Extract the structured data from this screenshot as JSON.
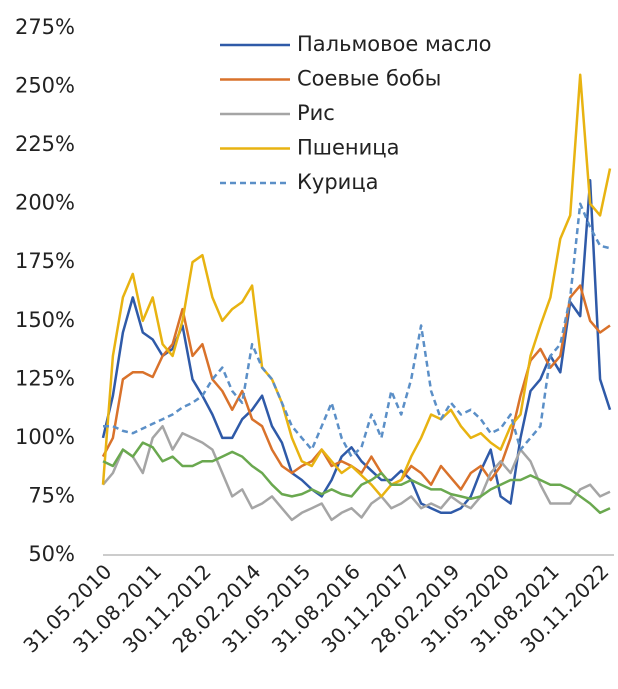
{
  "chart_data": {
    "type": "line",
    "categories": [
      "31.05.2010",
      null,
      null,
      null,
      null,
      "31.08.2011",
      null,
      null,
      null,
      null,
      "30.11.2012",
      null,
      null,
      null,
      null,
      "28.02.2014",
      null,
      null,
      null,
      null,
      "31.05.2015",
      null,
      null,
      null,
      null,
      "31.08.2016",
      null,
      null,
      null,
      null,
      "30.11.2017",
      null,
      null,
      null,
      null,
      "28.02.2019",
      null,
      null,
      null,
      null,
      "31.05.2020",
      null,
      null,
      null,
      null,
      "31.08.2021",
      null,
      null,
      null,
      null,
      "30.11.2022",
      null
    ],
    "series": [
      {
        "name": "Пальмовое масло",
        "color": "#2f5aa8",
        "values": [
          100,
          118,
          145,
          160,
          145,
          142,
          135,
          138,
          148,
          125,
          118,
          110,
          100,
          100,
          108,
          112,
          118,
          105,
          98,
          85,
          82,
          78,
          75,
          82,
          92,
          96,
          90,
          86,
          82,
          82,
          86,
          82,
          72,
          70,
          68,
          68,
          70,
          75,
          86,
          95,
          75,
          72,
          100,
          120,
          125,
          135,
          128,
          158,
          152,
          210,
          125,
          112
        ]
      },
      {
        "name": "Соевые бобы",
        "color": "#d9722b",
        "values": [
          92,
          100,
          125,
          128,
          128,
          126,
          135,
          140,
          155,
          135,
          140,
          125,
          120,
          112,
          120,
          108,
          105,
          95,
          88,
          85,
          88,
          90,
          95,
          88,
          90,
          88,
          85,
          92,
          85,
          80,
          82,
          88,
          85,
          80,
          88,
          83,
          78,
          85,
          88,
          82,
          88,
          100,
          118,
          133,
          138,
          130,
          135,
          160,
          165,
          150,
          145,
          148
        ]
      },
      {
        "name": "Рис",
        "color": "#a5a5a5",
        "values": [
          80,
          85,
          95,
          92,
          85,
          100,
          105,
          95,
          102,
          100,
          98,
          95,
          85,
          75,
          78,
          70,
          72,
          75,
          70,
          65,
          68,
          70,
          72,
          65,
          68,
          70,
          66,
          72,
          75,
          70,
          72,
          75,
          70,
          72,
          70,
          75,
          72,
          70,
          75,
          85,
          90,
          85,
          95,
          90,
          80,
          72,
          72,
          72,
          78,
          80,
          75,
          77
        ]
      },
      {
        "name": "Пшеница",
        "color": "#e8b311",
        "values": [
          80,
          135,
          160,
          170,
          150,
          160,
          140,
          135,
          150,
          175,
          178,
          160,
          150,
          155,
          158,
          165,
          130,
          125,
          115,
          100,
          90,
          88,
          95,
          90,
          85,
          88,
          84,
          80,
          75,
          80,
          82,
          92,
          100,
          110,
          108,
          112,
          105,
          100,
          102,
          98,
          95,
          105,
          110,
          135,
          148,
          160,
          185,
          195,
          255,
          200,
          195,
          215
        ]
      },
      {
        "name": "Курица",
        "color": "#5b8fc7",
        "dashed": true,
        "values": [
          105,
          105,
          103,
          102,
          104,
          106,
          108,
          110,
          113,
          115,
          118,
          125,
          130,
          120,
          115,
          140,
          130,
          125,
          115,
          105,
          100,
          95,
          105,
          115,
          100,
          92,
          96,
          110,
          100,
          120,
          110,
          125,
          148,
          120,
          108,
          115,
          110,
          112,
          108,
          102,
          104,
          110,
          95,
          100,
          105,
          135,
          140,
          160,
          200,
          190,
          182,
          181
        ]
      },
      {
        "color": "#6aa84f",
        "values": [
          90,
          88,
          95,
          92,
          98,
          96,
          90,
          92,
          88,
          88,
          90,
          90,
          92,
          94,
          92,
          88,
          85,
          80,
          76,
          75,
          76,
          78,
          76,
          78,
          76,
          75,
          80,
          82,
          85,
          80,
          80,
          82,
          80,
          78,
          78,
          76,
          75,
          74,
          75,
          78,
          80,
          82,
          82,
          84,
          82,
          80,
          80,
          78,
          75,
          72,
          68,
          70
        ]
      }
    ],
    "ylim": [
      50,
      275
    ],
    "yticks": [
      {
        "value": 50,
        "label": "50%"
      },
      {
        "value": 75,
        "label": "75%"
      },
      {
        "value": 100,
        "label": "100%"
      },
      {
        "value": 125,
        "label": "125%"
      },
      {
        "value": 150,
        "label": "150%"
      },
      {
        "value": 175,
        "label": "175%"
      },
      {
        "value": 200,
        "label": "200%"
      },
      {
        "value": 225,
        "label": "225%"
      },
      {
        "value": 250,
        "label": "250%"
      },
      {
        "value": 275,
        "label": "275%"
      }
    ],
    "grid": false,
    "legend": "top"
  }
}
